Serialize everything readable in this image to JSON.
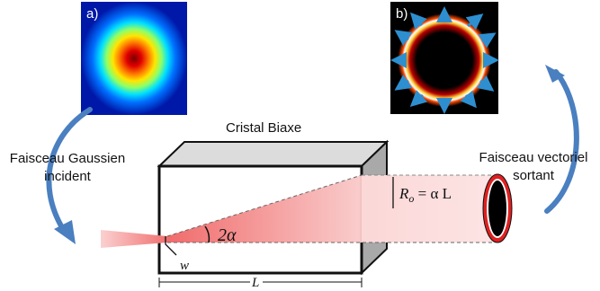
{
  "panels": {
    "a_label": "a)",
    "b_label": "b)"
  },
  "labels": {
    "crystal": "Cristal Biaxe",
    "input_beam_line1": "Faisceau Gaussien",
    "input_beam_line2": "incident",
    "output_beam_line1": "Faisceau vectoriel",
    "output_beam_line2": "sortant"
  },
  "math": {
    "angle": "2α",
    "waist": "w",
    "length": "L",
    "radius_R": "R",
    "radius_sub": "o",
    "radius_eq": " = α L"
  },
  "colors": {
    "beam": "#f07b7b",
    "arrow": "#4a7fc0",
    "ring_outer": "#e02020",
    "polarization_arrow": "#2e8fd0"
  }
}
